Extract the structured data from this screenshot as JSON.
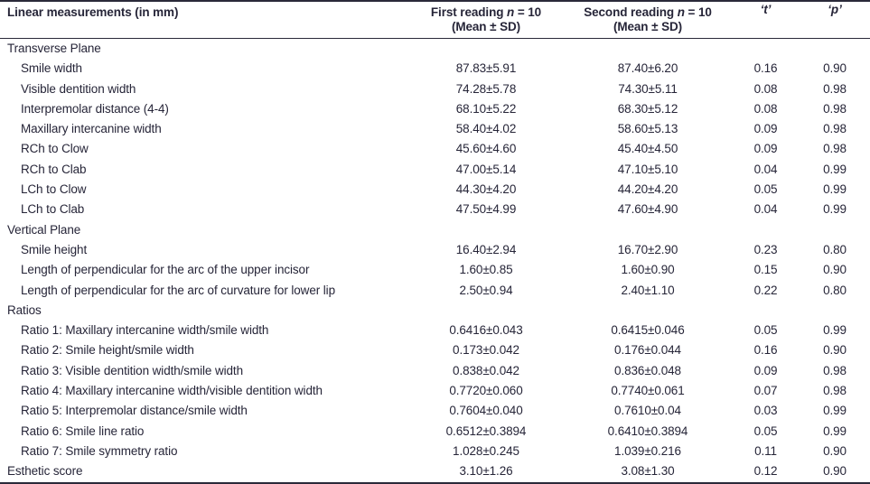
{
  "colors": {
    "text": "#262538",
    "rule": "#2a2939",
    "background": "#ffffff"
  },
  "table": {
    "header": {
      "measurements_label": "Linear measurements (in mm)",
      "first_reading": {
        "line1_pre": "First reading ",
        "n": "n",
        "line1_post": " = 10",
        "line2": "(Mean ± SD)"
      },
      "second_reading": {
        "line1_pre": "Second reading ",
        "n": "n",
        "line1_post": " = 10",
        "line2": "(Mean ± SD)"
      },
      "t_label": "‘t’",
      "p_label": "‘p’"
    },
    "rows": [
      {
        "label": "Transverse Plane",
        "indent": false,
        "first": "",
        "second": "",
        "t": "",
        "p": ""
      },
      {
        "label": "Smile width",
        "indent": true,
        "first": "87.83±5.91",
        "second": "87.40±6.20",
        "t": "0.16",
        "p": "0.90"
      },
      {
        "label": "Visible dentition width",
        "indent": true,
        "first": "74.28±5.78",
        "second": "74.30±5.11",
        "t": "0.08",
        "p": "0.98"
      },
      {
        "label": "Interpremolar distance (4-4)",
        "indent": true,
        "first": "68.10±5.22",
        "second": "68.30±5.12",
        "t": "0.08",
        "p": "0.98"
      },
      {
        "label": "Maxillary intercanine width",
        "indent": true,
        "first": "58.40±4.02",
        "second": "58.60±5.13",
        "t": "0.09",
        "p": "0.98"
      },
      {
        "label": "RCh to Clow",
        "indent": true,
        "first": "45.60±4.60",
        "second": "45.40±4.50",
        "t": "0.09",
        "p": "0.98"
      },
      {
        "label": "RCh to Clab",
        "indent": true,
        "first": "47.00±5.14",
        "second": "47.10±5.10",
        "t": "0.04",
        "p": "0.99"
      },
      {
        "label": "LCh to Clow",
        "indent": true,
        "first": "44.30±4.20",
        "second": "44.20±4.20",
        "t": "0.05",
        "p": "0.99"
      },
      {
        "label": "LCh to Clab",
        "indent": true,
        "first": "47.50±4.99",
        "second": "47.60±4.90",
        "t": "0.04",
        "p": "0.99"
      },
      {
        "label": "Vertical Plane",
        "indent": false,
        "first": "",
        "second": "",
        "t": "",
        "p": ""
      },
      {
        "label": "Smile height",
        "indent": true,
        "first": "16.40±2.94",
        "second": "16.70±2.90",
        "t": "0.23",
        "p": "0.80"
      },
      {
        "label": "Length of perpendicular for the arc of the upper incisor",
        "indent": true,
        "first": "1.60±0.85",
        "second": "1.60±0.90",
        "t": "0.15",
        "p": "0.90"
      },
      {
        "label": "Length of perpendicular for the arc of curvature for lower lip",
        "indent": true,
        "first": "2.50±0.94",
        "second": "2.40±1.10",
        "t": "0.22",
        "p": "0.80"
      },
      {
        "label": "Ratios",
        "indent": false,
        "first": "",
        "second": "",
        "t": "",
        "p": ""
      },
      {
        "label": "Ratio 1: Maxillary intercanine width/smile width",
        "indent": true,
        "first": "0.6416±0.043",
        "second": "0.6415±0.046",
        "t": "0.05",
        "p": "0.99"
      },
      {
        "label": "Ratio 2: Smile height/smile width",
        "indent": true,
        "first": "0.173±0.042",
        "second": "0.176±0.044",
        "t": "0.16",
        "p": "0.90"
      },
      {
        "label": "Ratio 3: Visible dentition width/smile width",
        "indent": true,
        "first": "0.838±0.042",
        "second": "0.836±0.048",
        "t": "0.09",
        "p": "0.98"
      },
      {
        "label": "Ratio 4: Maxillary intercanine width/visible dentition width",
        "indent": true,
        "first": "0.7720±0.060",
        "second": "0.7740±0.061",
        "t": "0.07",
        "p": "0.98"
      },
      {
        "label": "Ratio 5: Interpremolar distance/smile width",
        "indent": true,
        "first": "0.7604±0.040",
        "second": "0.7610±0.04",
        "t": "0.03",
        "p": "0.99"
      },
      {
        "label": "Ratio 6: Smile line ratio",
        "indent": true,
        "first": "0.6512±0.3894",
        "second": "0.6410±0.3894",
        "t": "0.05",
        "p": "0.99"
      },
      {
        "label": "Ratio 7: Smile symmetry ratio",
        "indent": true,
        "first": "1.028±0.245",
        "second": "1.039±0.216",
        "t": "0.11",
        "p": "0.90"
      },
      {
        "label": "Esthetic score",
        "indent": false,
        "first": "3.10±1.26",
        "second": "3.08±1.30",
        "t": "0.12",
        "p": "0.90"
      }
    ]
  }
}
